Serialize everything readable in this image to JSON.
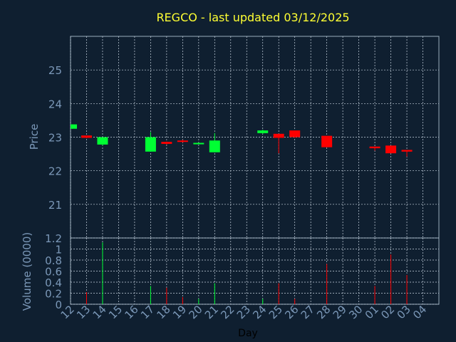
{
  "colors": {
    "background": "#0f1f30",
    "frame": "#9aaebd",
    "grid": "#c8d4e0",
    "title": "#ffff33",
    "label": "#7b98b8",
    "up": "#00ff33",
    "down": "#ff0000"
  },
  "chart_data": [
    {
      "type": "candlestick",
      "title": "REGCO - last updated 03/12/2025",
      "ylabel": "Price",
      "ylim": [
        20,
        26
      ],
      "yticks": [
        "21",
        "22",
        "23",
        "24",
        "25"
      ],
      "grid": true,
      "x": [
        "12",
        "13",
        "14",
        "15",
        "16",
        "17",
        "18",
        "19",
        "20",
        "21",
        "22",
        "23",
        "24",
        "25",
        "26",
        "27",
        "28",
        "29",
        "30",
        "01",
        "02",
        "03",
        "04"
      ],
      "candles": [
        {
          "x": "12",
          "open": 23.25,
          "close": 23.38,
          "high": 23.38,
          "low": 23.25
        },
        {
          "x": "13",
          "open": 23.05,
          "close": 22.98,
          "high": 23.05,
          "low": 22.97
        },
        {
          "x": "14",
          "open": 22.78,
          "close": 23.0,
          "high": 23.0,
          "low": 22.75
        },
        {
          "x": "17",
          "open": 22.57,
          "close": 23.0,
          "high": 23.15,
          "low": 22.57
        },
        {
          "x": "18",
          "open": 22.86,
          "close": 22.8,
          "high": 22.87,
          "low": 22.78
        },
        {
          "x": "19",
          "open": 22.9,
          "close": 22.86,
          "high": 22.92,
          "low": 22.84
        },
        {
          "x": "20",
          "open": 22.8,
          "close": 22.83,
          "high": 22.84,
          "low": 22.79
        },
        {
          "x": "21",
          "open": 22.55,
          "close": 22.9,
          "high": 23.12,
          "low": 22.55
        },
        {
          "x": "24",
          "open": 23.12,
          "close": 23.2,
          "high": 23.22,
          "low": 23.1
        },
        {
          "x": "25",
          "open": 23.1,
          "close": 22.98,
          "high": 23.1,
          "low": 22.52
        },
        {
          "x": "26",
          "open": 23.2,
          "close": 23.0,
          "high": 23.2,
          "low": 22.98
        },
        {
          "x": "28",
          "open": 23.04,
          "close": 22.7,
          "high": 23.04,
          "low": 22.7
        },
        {
          "x": "01",
          "open": 22.72,
          "close": 22.67,
          "high": 22.72,
          "low": 22.6
        },
        {
          "x": "02",
          "open": 22.75,
          "close": 22.52,
          "high": 22.75,
          "low": 22.52
        },
        {
          "x": "03",
          "open": 22.62,
          "close": 22.57,
          "high": 22.62,
          "low": 22.42
        }
      ]
    },
    {
      "type": "bar",
      "xlabel": "Day",
      "ylabel": "Volume (0000)",
      "ylim": [
        0,
        1.2
      ],
      "yticks": [
        "0",
        "0.2",
        "0.4",
        "0.6",
        "0.8",
        "1",
        "1.2"
      ],
      "grid": true,
      "x": [
        "12",
        "13",
        "14",
        "15",
        "16",
        "17",
        "18",
        "19",
        "20",
        "21",
        "22",
        "23",
        "24",
        "25",
        "26",
        "27",
        "28",
        "29",
        "30",
        "01",
        "02",
        "03",
        "04"
      ],
      "bars": [
        {
          "x": "13",
          "value": 0.22,
          "direction": "down"
        },
        {
          "x": "14",
          "value": 1.12,
          "direction": "up"
        },
        {
          "x": "17",
          "value": 0.33,
          "direction": "up"
        },
        {
          "x": "18",
          "value": 0.3,
          "direction": "down"
        },
        {
          "x": "19",
          "value": 0.13,
          "direction": "down"
        },
        {
          "x": "20",
          "value": 0.1,
          "direction": "up"
        },
        {
          "x": "21",
          "value": 0.38,
          "direction": "up"
        },
        {
          "x": "24",
          "value": 0.1,
          "direction": "up"
        },
        {
          "x": "25",
          "value": 0.38,
          "direction": "down"
        },
        {
          "x": "26",
          "value": 0.1,
          "direction": "down"
        },
        {
          "x": "28",
          "value": 0.73,
          "direction": "down"
        },
        {
          "x": "01",
          "value": 0.33,
          "direction": "down"
        },
        {
          "x": "02",
          "value": 0.9,
          "direction": "down"
        },
        {
          "x": "03",
          "value": 0.53,
          "direction": "down"
        }
      ]
    }
  ]
}
